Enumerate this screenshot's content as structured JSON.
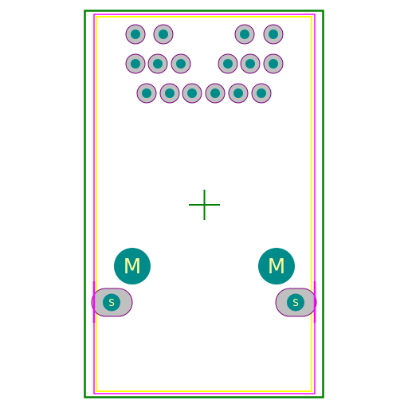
{
  "colors": {
    "background": "#ffffff",
    "courtyard": "#008000",
    "silkscreen": "#ffff00",
    "fab": "#ff00ff",
    "pad_copper": "#c0c0c0",
    "drill": "#008b8b",
    "pad_outline": "#800080",
    "label_text": "#ffff99",
    "origin_cross": "#008000"
  },
  "pads": {
    "mounting": [
      {
        "id": "M1",
        "label": "M"
      },
      {
        "id": "M2",
        "label": "M"
      }
    ],
    "shield": [
      {
        "id": "S1",
        "label": "S"
      },
      {
        "id": "S2",
        "label": "S"
      }
    ],
    "signal_row_count": [
      4,
      6,
      6
    ]
  },
  "origin_marker": "crosshair-icon"
}
